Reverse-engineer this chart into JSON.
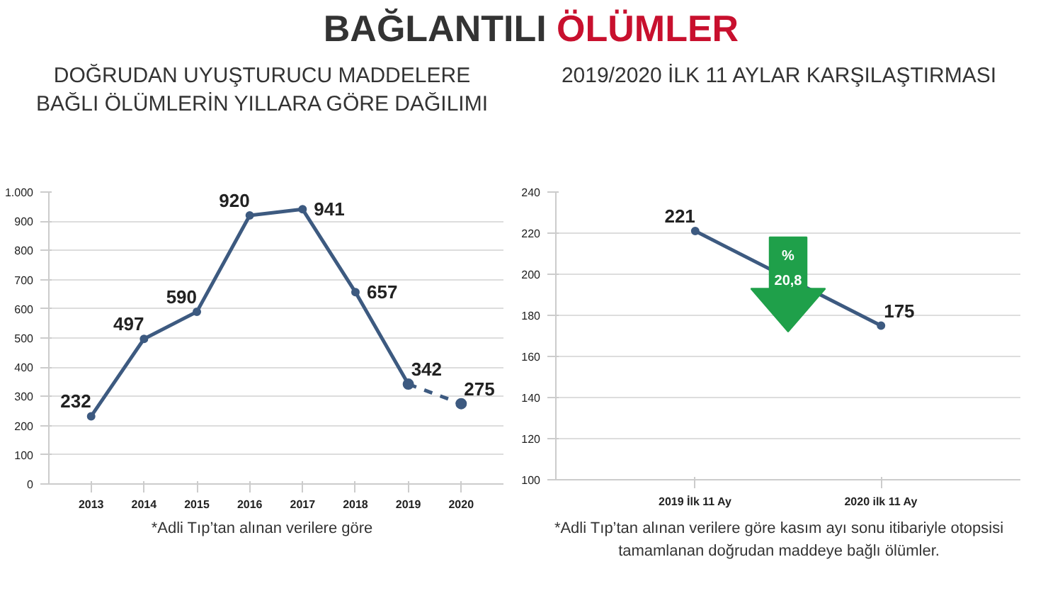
{
  "chart_data": [
    {
      "type": "line",
      "title": "DOĞRUDAN UYUŞTURUCU MADDELERE BAĞLI ÖLÜMLERİN YILLARA GÖRE DAĞILIMI",
      "categories": [
        "2013",
        "2014",
        "2015",
        "2016",
        "2017",
        "2018",
        "2019",
        "2020"
      ],
      "series": [
        {
          "color": "#3d5a80",
          "values": [
            232,
            497,
            590,
            920,
            941,
            657,
            342,
            null
          ],
          "value_labels": [
            "232",
            "497",
            "590",
            "920",
            "941",
            "657",
            "342",
            null
          ]
        },
        {
          "color": "#3d5a80",
          "line_style": "dashed",
          "values": [
            null,
            null,
            null,
            null,
            null,
            null,
            342,
            275
          ],
          "value_labels": [
            null,
            null,
            null,
            null,
            null,
            null,
            null,
            "275"
          ]
        }
      ],
      "ylim": [
        0,
        1000
      ],
      "yticks": [
        0,
        100,
        200,
        300,
        400,
        500,
        600,
        700,
        800,
        900,
        {
          "value": 1000,
          "label": "1.000"
        }
      ],
      "grid": "y",
      "marker": "circle",
      "annotations": [
        "BAĞLANTILI ÖLÜMLER",
        "*Adli Tıp’tan alınan verilere göre"
      ]
    },
    {
      "type": "line",
      "title": "2019/2020 İLK 11 AYLAR KARŞILAŞTIRMASI",
      "categories": [
        "2019 İlk 11 Ay",
        "2020 ilk 11 Ay"
      ],
      "series": [
        {
          "color": "#3d5a80",
          "values": [
            221,
            175
          ],
          "value_labels": [
            "221",
            "175"
          ]
        }
      ],
      "ylim": [
        100,
        240
      ],
      "yticks": [
        100,
        120,
        140,
        160,
        180,
        200,
        220,
        240
      ],
      "grid": "y",
      "marker": "circle",
      "annotations": [
        "%",
        "20,8",
        "*Adli Tıp’tan alınan verilere göre kasım ayı sonu itibariyle otopsisi tamamlanan doğrudan maddeye bağlı ölümler."
      ]
    }
  ]
}
